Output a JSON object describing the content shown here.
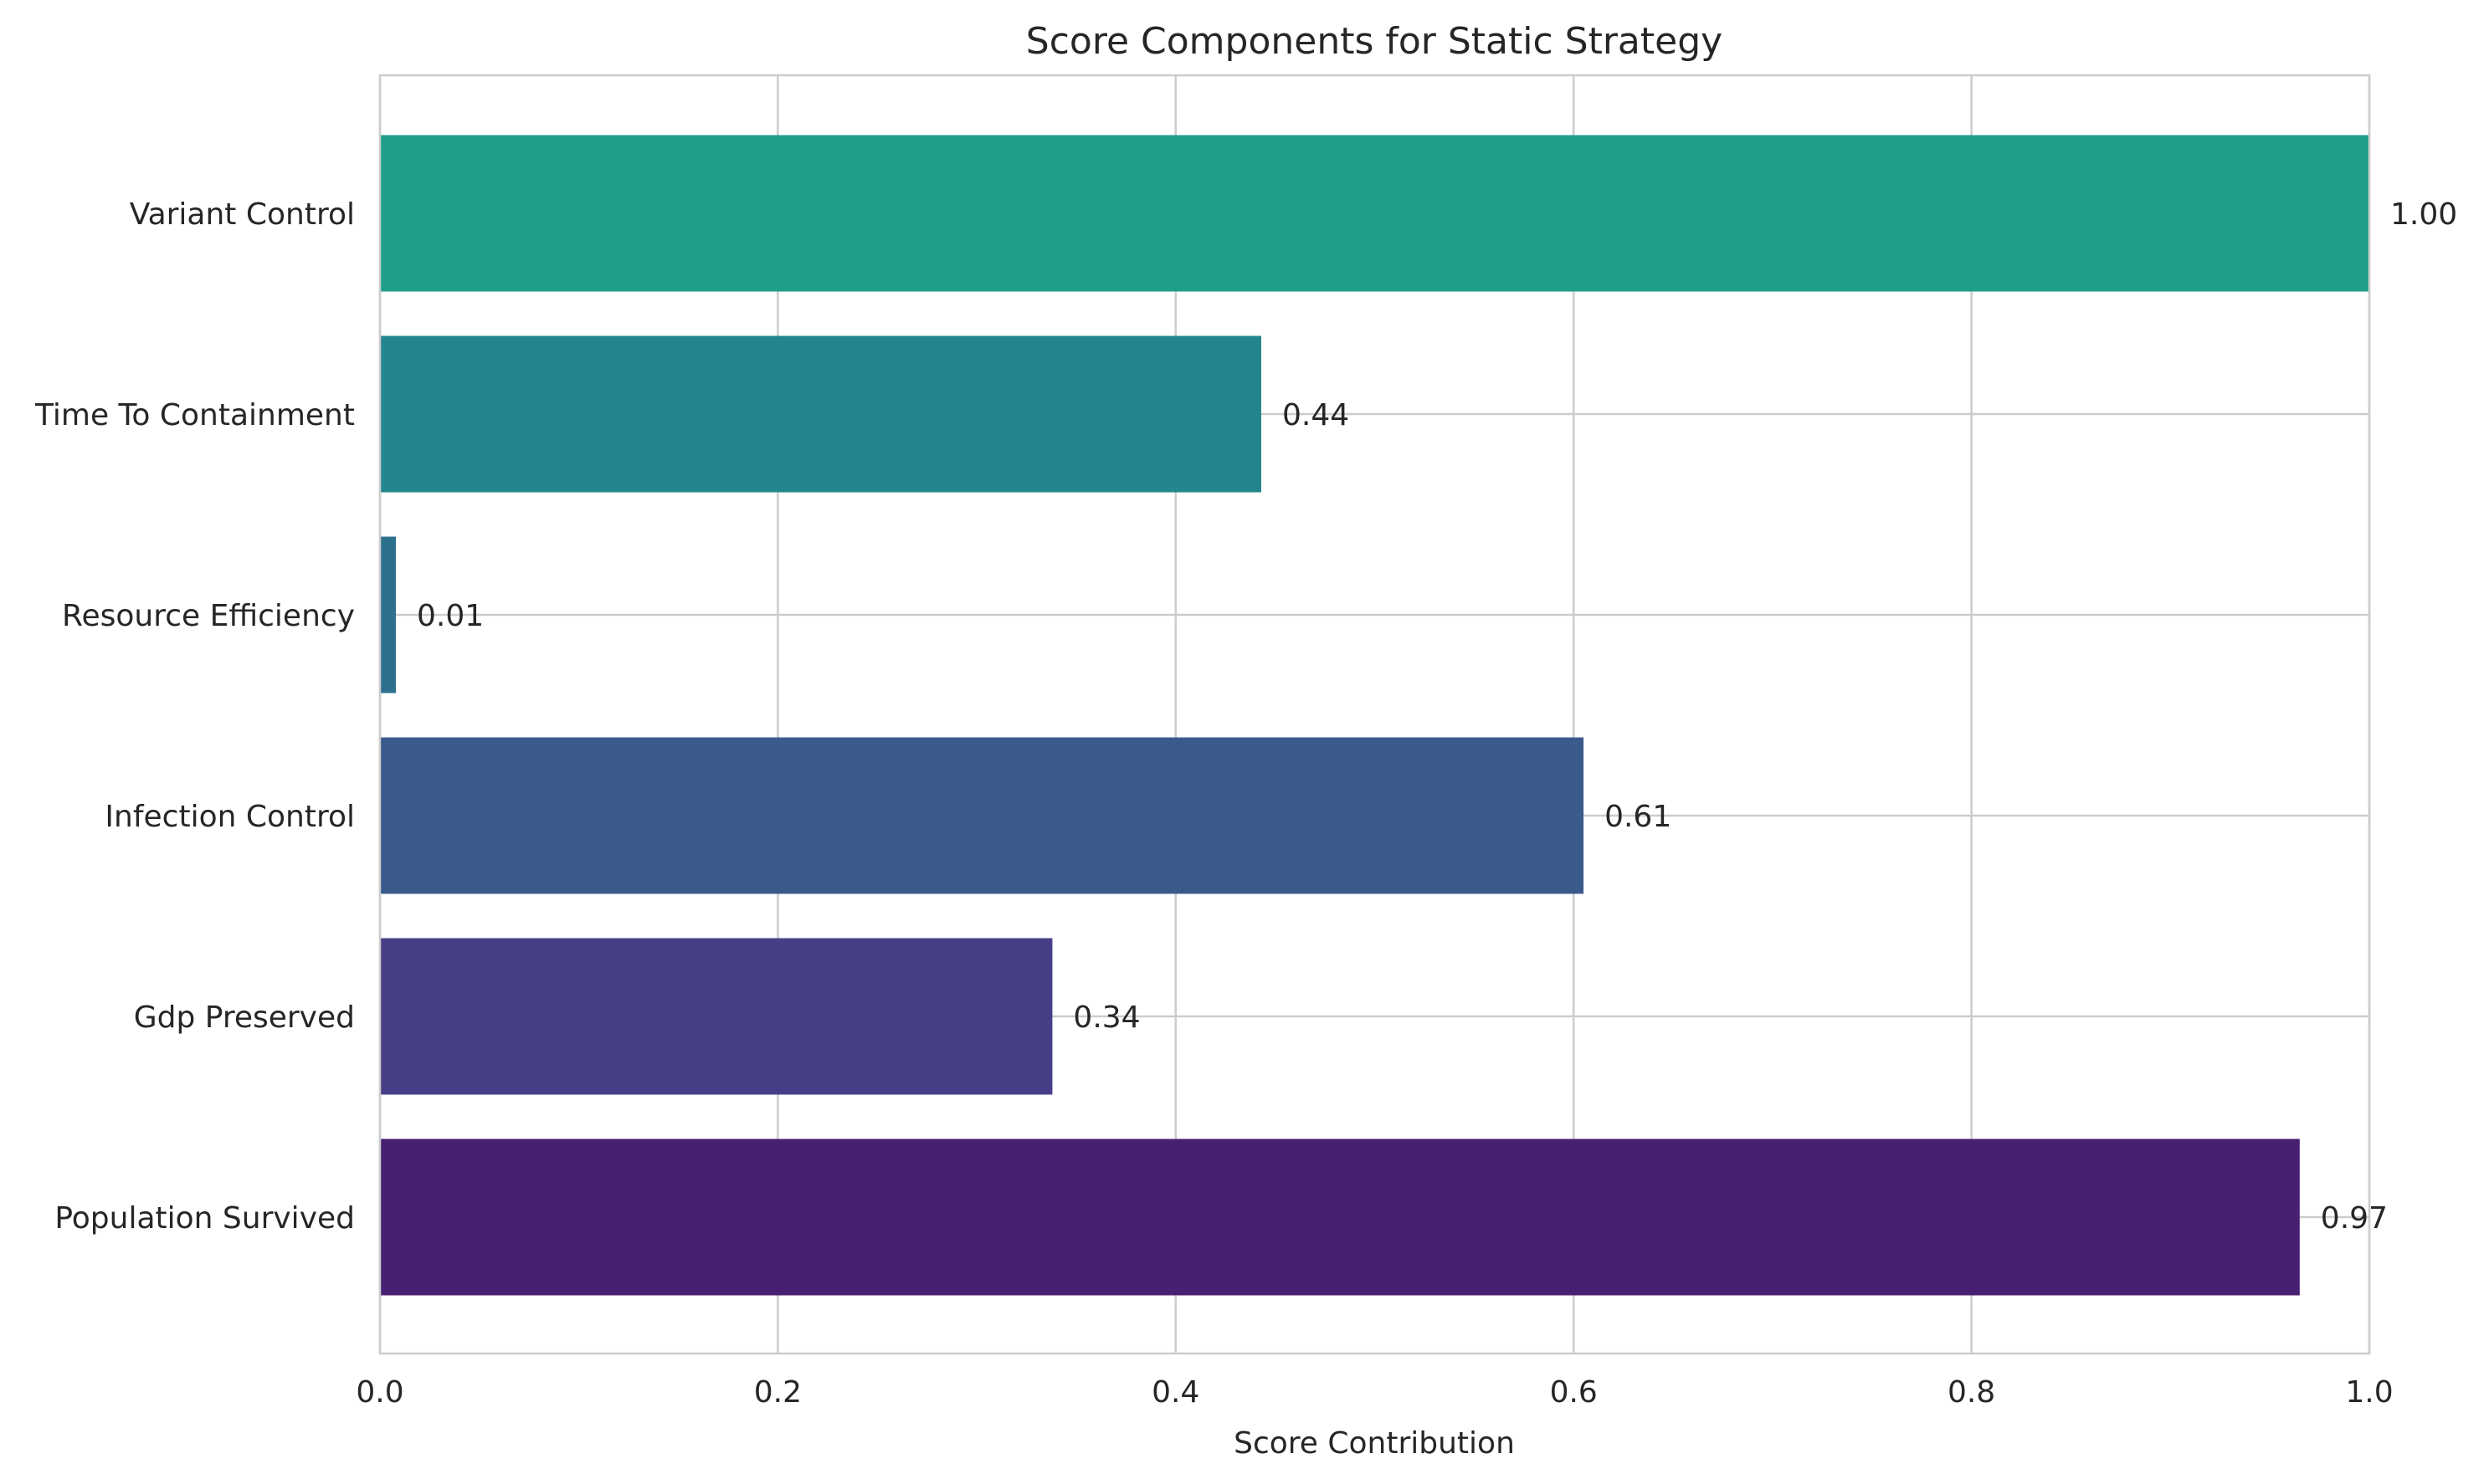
{
  "chart_data": {
    "type": "bar",
    "orientation": "horizontal",
    "title": "Score Components for Static Strategy",
    "xlabel": "Score Contribution",
    "ylabel": "",
    "xlim": [
      0.0,
      1.0
    ],
    "xticks": [
      "0.0",
      "0.2",
      "0.4",
      "0.6",
      "0.8",
      "1.0"
    ],
    "grid": true,
    "categories": [
      "Population Survived",
      "Gdp Preserved",
      "Infection Control",
      "Resource Efficiency",
      "Time To Containment",
      "Variant Control"
    ],
    "values": [
      0.965,
      0.338,
      0.605,
      0.008,
      0.443,
      1.0
    ],
    "value_labels": [
      "0.97",
      "0.34",
      "0.61",
      "0.01",
      "0.44",
      "1.00"
    ],
    "colors": [
      "#482071",
      "#463f87",
      "#3a5a8c",
      "#2d708e",
      "#25858e",
      "#1f9e8a"
    ]
  }
}
